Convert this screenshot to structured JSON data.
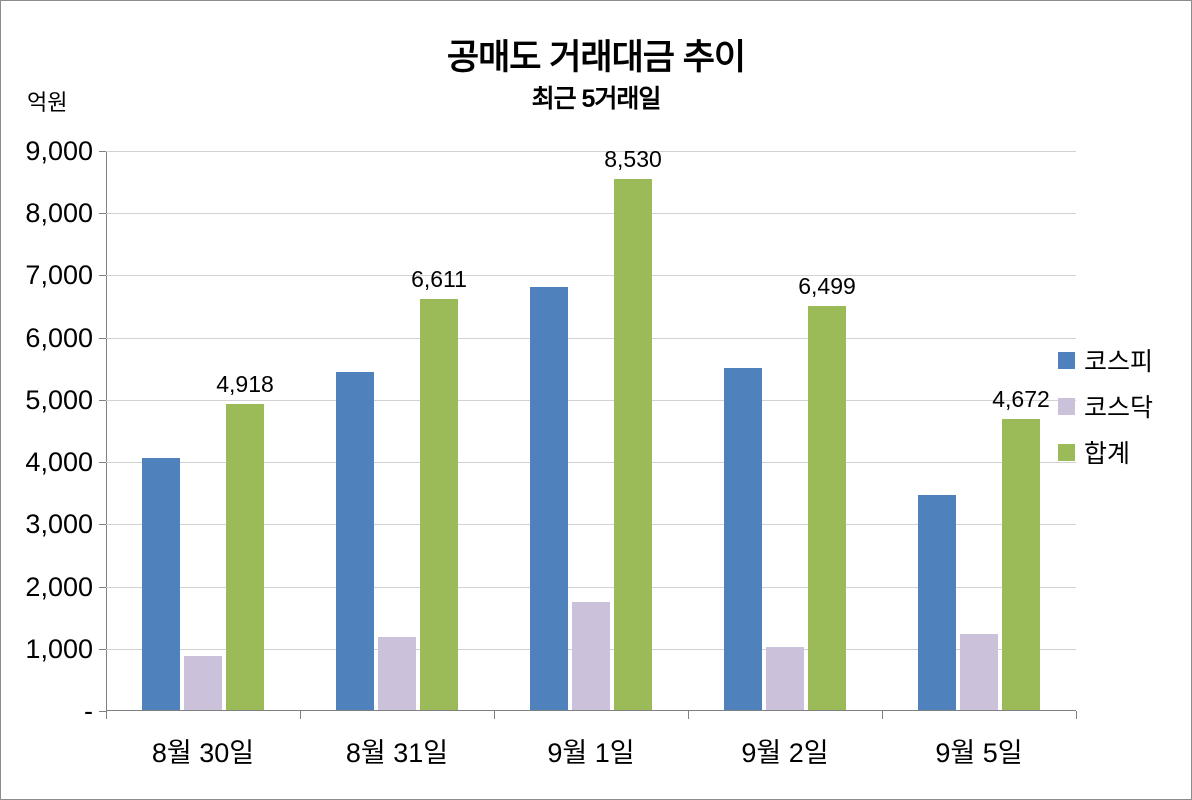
{
  "chart": {
    "title": "공매도 거래대금 추이",
    "subtitle": "최근 5거래일",
    "unit_label": "억원"
  },
  "chart_data": {
    "type": "bar",
    "title": "공매도 거래대금 추이",
    "subtitle": "최근 5거래일",
    "unit": "억원",
    "categories": [
      "8월 30일",
      "8월 31일",
      "9월 1일",
      "9월 2일",
      "9월 5일"
    ],
    "series": [
      {
        "name": "코스피",
        "color": "#4F81BD",
        "data_labels": false,
        "values": [
          4050,
          5430,
          6800,
          5490,
          3450
        ]
      },
      {
        "name": "코스닥",
        "color": "#CCC1DA",
        "data_labels": false,
        "values": [
          868,
          1181,
          1730,
          1009,
          1222
        ]
      },
      {
        "name": "합계",
        "color": "#9BBB59",
        "data_labels": true,
        "values": [
          4918,
          6611,
          8530,
          6499,
          4672
        ]
      }
    ],
    "ylim": [
      0,
      9000
    ],
    "ytick_interval": 1000,
    "ytick_labels": [
      "-",
      "1,000",
      "2,000",
      "3,000",
      "4,000",
      "5,000",
      "6,000",
      "7,000",
      "8,000",
      "9,000"
    ],
    "grid": true,
    "legend_position": "right"
  }
}
